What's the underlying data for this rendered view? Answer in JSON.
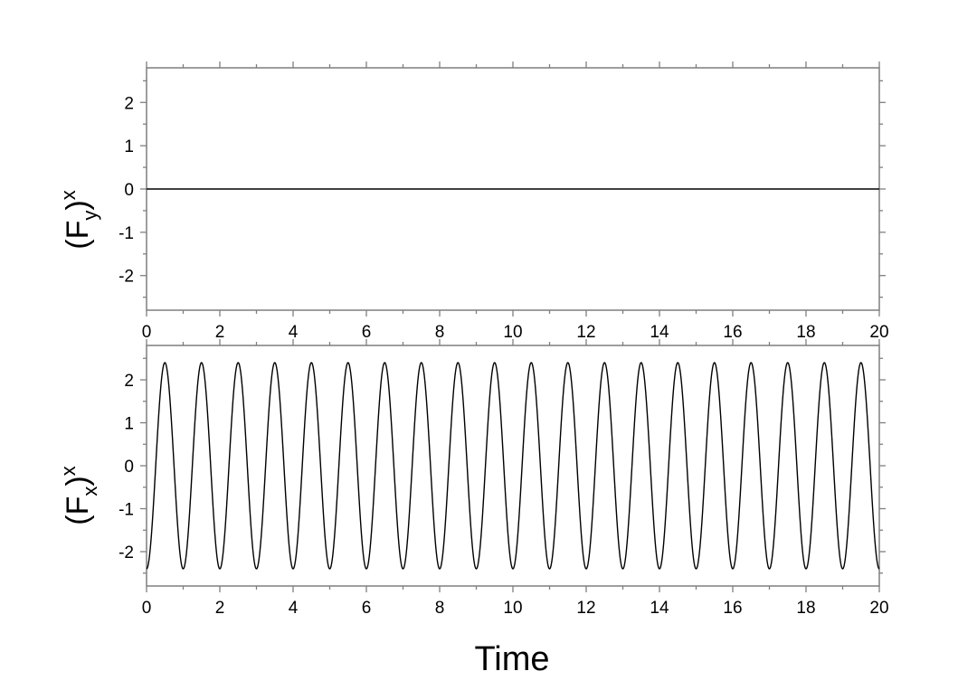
{
  "chart_data": [
    {
      "type": "line",
      "ylabel": {
        "base": "(F",
        "sub": "y",
        "close": ")",
        "sup": "x"
      },
      "xlim": [
        0,
        20
      ],
      "ylim": [
        -2.8,
        2.8
      ],
      "x_ticks": [
        "0",
        "2",
        "4",
        "6",
        "8",
        "10",
        "12",
        "14",
        "16",
        "18",
        "20"
      ],
      "y_ticks": [
        "2",
        "1",
        "0",
        "-1",
        "-2"
      ],
      "series": [
        {
          "function": "constant",
          "value": 0,
          "x_range": [
            0,
            20
          ],
          "color": "#000000"
        }
      ]
    },
    {
      "type": "line",
      "xlabel": "Time",
      "ylabel": {
        "base": "(F",
        "sub": "x",
        "close": ")",
        "sup": "x"
      },
      "xlim": [
        0,
        20
      ],
      "ylim": [
        -2.8,
        2.8
      ],
      "x_ticks": [
        "0",
        "2",
        "4",
        "6",
        "8",
        "10",
        "12",
        "14",
        "16",
        "18",
        "20"
      ],
      "y_ticks": [
        "2",
        "1",
        "0",
        "-1",
        "-2"
      ],
      "series": [
        {
          "function": "-A*cos(2*pi*x/period)",
          "amplitude": 2.4,
          "period": 1,
          "x_range": [
            0,
            20
          ],
          "color": "#000000"
        }
      ]
    }
  ]
}
